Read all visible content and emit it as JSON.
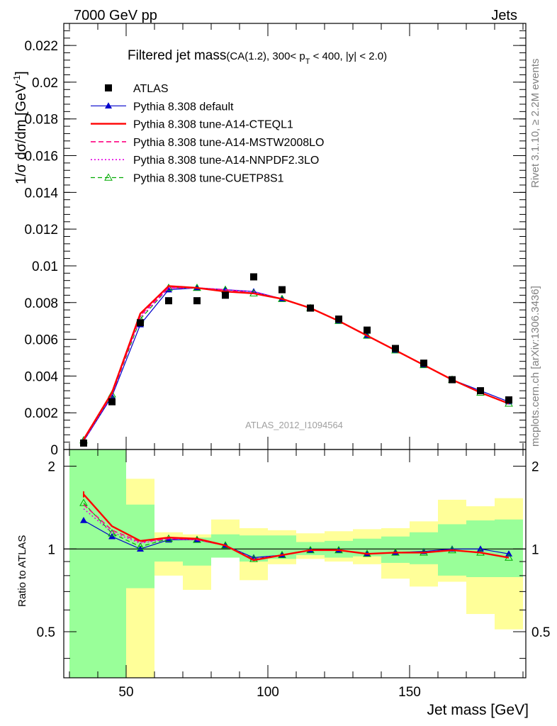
{
  "header": {
    "left": "7000 GeV pp",
    "right": "Jets",
    "plot_title_main": "Filtered jet mass",
    "plot_title_detail": "(CA(1.2), 300< p",
    "plot_title_sub_T": "T",
    "plot_title_tail": " < 400, |y| < 2.0)",
    "side_label_top": "Rivet 3.1.10, ≥ 2.2M events",
    "side_label_bottom": "mcplots.cern.ch [arXiv:1306.3436]",
    "watermark": "ATLAS_2012_I1094564"
  },
  "axes": {
    "ylabel_main": "1/σ dσ/dm [GeV",
    "ylabel_main_sup": "-1",
    "ylabel_main_end": "]",
    "ylabel_ratio": "Ratio to ATLAS",
    "xlabel": "Jet mass [GeV]",
    "main_y_ticks": [
      {
        "v": 0,
        "label": "0"
      },
      {
        "v": 0.002,
        "label": "0.002"
      },
      {
        "v": 0.004,
        "label": "0.004"
      },
      {
        "v": 0.006,
        "label": "0.006"
      },
      {
        "v": 0.008,
        "label": "0.008"
      },
      {
        "v": 0.01,
        "label": "0.01"
      },
      {
        "v": 0.012,
        "label": "0.012"
      },
      {
        "v": 0.014,
        "label": "0.014"
      },
      {
        "v": 0.016,
        "label": "0.016"
      },
      {
        "v": 0.018,
        "label": "0.018"
      },
      {
        "v": 0.02,
        "label": "0.02"
      },
      {
        "v": 0.022,
        "label": "0.022"
      }
    ],
    "ratio_y_ticks": [
      {
        "v": 0.5,
        "label": "0.5"
      },
      {
        "v": 1,
        "label": "1"
      },
      {
        "v": 2,
        "label": "2"
      }
    ],
    "x_ticks": [
      {
        "v": 50,
        "label": "50"
      },
      {
        "v": 100,
        "label": "100"
      },
      {
        "v": 150,
        "label": "150"
      }
    ]
  },
  "chart_data": {
    "type": "line",
    "xlabel": "Jet mass [GeV]",
    "ylabel": "1/σ dσ/dm [GeV-1]",
    "xlim": [
      28,
      191
    ],
    "ylim_main": [
      0,
      0.0232
    ],
    "ylim_ratio": [
      0.34,
      2.3
    ],
    "ratio_log_scale": true,
    "bin_edges": [
      30,
      40,
      50,
      60,
      70,
      80,
      90,
      100,
      110,
      120,
      130,
      140,
      150,
      160,
      170,
      180,
      190
    ],
    "x": [
      35,
      45,
      55,
      65,
      75,
      85,
      95,
      105,
      115,
      125,
      135,
      145,
      155,
      165,
      175,
      185
    ],
    "data": {
      "name": "ATLAS",
      "values": [
        0.00035,
        0.0026,
        0.0069,
        0.0081,
        0.0081,
        0.0084,
        0.0094,
        0.0087,
        0.0077,
        0.0071,
        0.0065,
        0.0055,
        0.0047,
        0.0038,
        0.0032,
        0.0027
      ]
    },
    "series": [
      {
        "name": "Pythia 8.308 default",
        "color": "#0000cc",
        "dash": "",
        "width": 1.2,
        "marker": "filled-triangle",
        "values": [
          0.00045,
          0.0029,
          0.0068,
          0.0087,
          0.0088,
          0.0087,
          0.0086,
          0.0082,
          0.0077,
          0.007,
          0.0062,
          0.0054,
          0.0046,
          0.0038,
          0.0032,
          0.0026
        ],
        "ratio": [
          1.27,
          1.11,
          1.0,
          1.08,
          1.08,
          1.03,
          0.93,
          0.95,
          0.99,
          0.99,
          0.96,
          0.97,
          0.98,
          1.0,
          1.0,
          0.96
        ]
      },
      {
        "name": "Pythia 8.308 tune-A14-CTEQL1",
        "color": "#ff0000",
        "dash": "",
        "width": 2.4,
        "marker": "none",
        "values": [
          0.00055,
          0.0031,
          0.0074,
          0.0089,
          0.0088,
          0.0086,
          0.0085,
          0.0082,
          0.0077,
          0.007,
          0.0062,
          0.0054,
          0.0046,
          0.0038,
          0.0031,
          0.0025
        ],
        "ratio": [
          1.58,
          1.21,
          1.07,
          1.1,
          1.09,
          1.03,
          0.91,
          0.95,
          0.99,
          0.99,
          0.96,
          0.97,
          0.97,
          0.99,
          0.97,
          0.93
        ]
      },
      {
        "name": "Pythia 8.308 tune-A14-MSTW2008LO",
        "color": "#ff0080",
        "dash": "7,4",
        "width": 1.6,
        "marker": "none",
        "values": [
          0.0005,
          0.003,
          0.0073,
          0.0088,
          0.0088,
          0.0087,
          0.0085,
          0.0082,
          0.0077,
          0.007,
          0.0062,
          0.0054,
          0.0046,
          0.0038,
          0.0031,
          0.0025
        ],
        "ratio": [
          1.45,
          1.17,
          1.06,
          1.09,
          1.08,
          1.03,
          0.91,
          0.95,
          0.99,
          0.99,
          0.96,
          0.97,
          0.97,
          0.99,
          0.97,
          0.93
        ]
      },
      {
        "name": "Pythia 8.308 tune-A14-NNPDF2.3LO",
        "color": "#e300e3",
        "dash": "2,3",
        "width": 1.6,
        "marker": "none",
        "values": [
          0.00048,
          0.003,
          0.0072,
          0.0088,
          0.0088,
          0.0087,
          0.0086,
          0.0082,
          0.0077,
          0.007,
          0.0062,
          0.0054,
          0.0046,
          0.0038,
          0.0031,
          0.0025
        ],
        "ratio": [
          1.4,
          1.15,
          1.05,
          1.09,
          1.08,
          1.03,
          0.92,
          0.95,
          0.99,
          0.99,
          0.96,
          0.97,
          0.97,
          0.99,
          0.97,
          0.93
        ]
      },
      {
        "name": "Pythia 8.308 tune-CUETP8S1",
        "color": "#00aa00",
        "dash": "6,4",
        "width": 1.2,
        "marker": "open-triangle",
        "values": [
          0.0005,
          0.003,
          0.0071,
          0.0088,
          0.0088,
          0.0087,
          0.0085,
          0.0082,
          0.0077,
          0.007,
          0.0062,
          0.0054,
          0.0046,
          0.0038,
          0.0031,
          0.0025
        ],
        "ratio": [
          1.47,
          1.14,
          1.02,
          1.09,
          1.08,
          1.03,
          0.92,
          0.95,
          0.99,
          0.99,
          0.96,
          0.97,
          0.97,
          0.99,
          0.97,
          0.93
        ]
      }
    ],
    "ratio_bands": {
      "green_lo": [
        0.34,
        0.34,
        0.72,
        0.9,
        0.87,
        0.93,
        0.9,
        0.92,
        0.95,
        0.93,
        0.94,
        0.89,
        0.88,
        0.8,
        0.79,
        0.79
      ],
      "green_hi": [
        2.3,
        2.3,
        1.45,
        1.09,
        1.1,
        1.13,
        1.12,
        1.12,
        1.06,
        1.07,
        1.09,
        1.11,
        1.15,
        1.23,
        1.27,
        1.28
      ],
      "yellow_lo": [
        0.34,
        0.34,
        0.34,
        0.8,
        0.71,
        0.97,
        0.77,
        0.88,
        0.92,
        0.9,
        0.88,
        0.78,
        0.73,
        0.76,
        0.58,
        0.51
      ],
      "yellow_hi": [
        2.3,
        2.2,
        1.8,
        1.15,
        1.13,
        1.28,
        1.19,
        1.17,
        1.14,
        1.16,
        1.18,
        1.19,
        1.26,
        1.51,
        1.43,
        1.53
      ]
    },
    "legend_position": "top-left"
  }
}
